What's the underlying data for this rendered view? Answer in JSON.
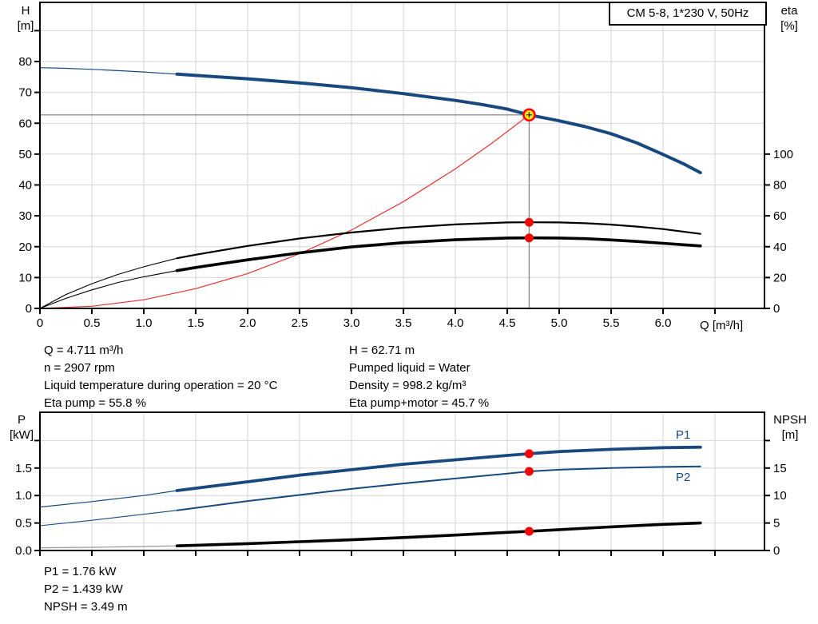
{
  "title_box": "CM 5-8, 1*230 V, 50Hz",
  "colors": {
    "curve_blue": "#17497E",
    "curve_black": "#000000",
    "curve_red": "#E83030",
    "dot_red": "#FF0000",
    "duty_fill": "#FFE40A",
    "grid": "#D6D6D6",
    "crosshair": "#8F8F8F"
  },
  "top_chart": {
    "y_left": {
      "title": "H",
      "unit": "[m]"
    },
    "y_right": {
      "title": "eta",
      "unit": "[%]"
    },
    "x_axis": {
      "label": "Q [m³/h]"
    }
  },
  "bottom_chart": {
    "y_left": {
      "title": "P",
      "unit": "[kW]"
    },
    "y_right": {
      "title": "NPSH",
      "unit": "[m]"
    },
    "p1_label": "P1",
    "p2_label": "P2"
  },
  "annotations": {
    "flow": "Q = 4.711 m³/h",
    "speed": "n = 2907 rpm",
    "liquid_temp": "Liquid temperature during operation = 20 °C",
    "eta_pump": "Eta pump = 55.8 %",
    "head": "H = 62.71 m",
    "pumped_liquid": "Pumped liquid = Water",
    "density": "Density = 998.2 kg/m³",
    "eta_pump_motor": "Eta pump+motor = 45.7 %",
    "p1": "P1 = 1.76 kW",
    "p2": "P2 = 1.439 kW",
    "npsh": "NPSH = 3.49 m"
  },
  "chart_data": [
    {
      "type": "line",
      "title": "CM 5-8, 1*230 V, 50Hz",
      "x": {
        "grid_step": 0.5,
        "grid_max": 6.5,
        "tick_values": [
          0,
          0.5,
          1,
          1.5,
          2,
          2.5,
          3,
          3.5,
          4,
          4.5,
          5,
          5.5,
          6
        ],
        "tick_labels": [
          "0",
          "0.5",
          "1.0",
          "1.5",
          "2.0",
          "2.5",
          "3.0",
          "3.5",
          "4.0",
          "4.5",
          "5.0",
          "5.5",
          "6.0"
        ],
        "extra_ticks": [
          6.5
        ],
        "label": "Q [m³/h]"
      },
      "y_left": {
        "label": "H [m]",
        "tick_step": 10,
        "tick_values": [
          0,
          10,
          20,
          30,
          40,
          50,
          60,
          70,
          80
        ],
        "tick_labels": [
          "0",
          "10",
          "20",
          "30",
          "40",
          "50",
          "60",
          "70",
          "80"
        ],
        "extra_ticks": [
          90
        ]
      },
      "y_right": {
        "label": "eta [%]",
        "tick_step": 20,
        "tick_values": [
          0,
          20,
          40,
          60,
          80,
          100
        ],
        "tick_labels": [
          "0",
          "20",
          "40",
          "60",
          "80",
          "100"
        ],
        "extra_ticks": []
      },
      "duty_point": {
        "q": 4.711,
        "h": 62.71
      },
      "dots": [
        {
          "axis": "right",
          "q": 4.711,
          "v": 55.8
        },
        {
          "axis": "right",
          "q": 4.711,
          "v": 45.7
        }
      ],
      "series": [
        {
          "name": "qh-thin",
          "axis": "left",
          "color": "#17497E",
          "width": 1.2,
          "points": [
            [
              0,
              78
            ],
            [
              0.25,
              77.8
            ],
            [
              0.5,
              77.45
            ],
            [
              0.75,
              77.05
            ],
            [
              1,
              76.6
            ],
            [
              1.32,
              75.9
            ]
          ]
        },
        {
          "name": "qh",
          "axis": "left",
          "color": "#17497E",
          "width": 4,
          "points": [
            [
              1.32,
              75.9
            ],
            [
              1.5,
              75.5
            ],
            [
              2,
              74.4
            ],
            [
              2.5,
              73.1
            ],
            [
              3,
              71.5
            ],
            [
              3.5,
              69.6
            ],
            [
              4,
              67.4
            ],
            [
              4.25,
              66.1
            ],
            [
              4.5,
              64.6
            ],
            [
              4.711,
              62.71
            ],
            [
              5,
              60.8
            ],
            [
              5.25,
              58.9
            ],
            [
              5.5,
              56.6
            ],
            [
              5.75,
              53.6
            ],
            [
              6,
              49.9
            ],
            [
              6.2,
              46.8
            ],
            [
              6.36,
              44
            ]
          ]
        },
        {
          "name": "system-curve",
          "axis": "left",
          "color": "#E83030",
          "width": 1.2,
          "points": [
            [
              0,
              0
            ],
            [
              0.5,
              0.7
            ],
            [
              1,
              2.8
            ],
            [
              1.5,
              6.4
            ],
            [
              2,
              11.3
            ],
            [
              2.5,
              17.7
            ],
            [
              3,
              25.4
            ],
            [
              3.5,
              34.6
            ],
            [
              4,
              45.2
            ],
            [
              4.35,
              53.5
            ],
            [
              4.711,
              62.71
            ]
          ]
        },
        {
          "name": "eta-pump-thin",
          "axis": "right",
          "color": "#000000",
          "width": 1.1,
          "points": [
            [
              0,
              0
            ],
            [
              0.25,
              9
            ],
            [
              0.5,
              16
            ],
            [
              0.75,
              22
            ],
            [
              1,
              27
            ],
            [
              1.32,
              32.5
            ]
          ]
        },
        {
          "name": "eta-pump",
          "axis": "right",
          "color": "#000000",
          "width": 2.2,
          "points": [
            [
              1.32,
              32.5
            ],
            [
              1.5,
              34.8
            ],
            [
              2,
              40.5
            ],
            [
              2.5,
              45.3
            ],
            [
              3,
              49.2
            ],
            [
              3.5,
              52.3
            ],
            [
              4,
              54.4
            ],
            [
              4.5,
              55.7
            ],
            [
              4.711,
              55.8
            ],
            [
              5,
              55.7
            ],
            [
              5.25,
              55.2
            ],
            [
              5.5,
              54.3
            ],
            [
              5.75,
              53
            ],
            [
              6,
              51.4
            ],
            [
              6.36,
              48.3
            ]
          ]
        },
        {
          "name": "eta-pump-motor-thin",
          "axis": "right",
          "color": "#000000",
          "width": 1.1,
          "points": [
            [
              0,
              0
            ],
            [
              0.25,
              6.5
            ],
            [
              0.5,
              12
            ],
            [
              0.75,
              16.8
            ],
            [
              1,
              20.5
            ],
            [
              1.32,
              24.5
            ]
          ]
        },
        {
          "name": "eta-pump-motor",
          "axis": "right",
          "color": "#000000",
          "width": 3.6,
          "points": [
            [
              1.32,
              24.5
            ],
            [
              1.5,
              26.5
            ],
            [
              2,
              31.5
            ],
            [
              2.5,
              36
            ],
            [
              3,
              39.8
            ],
            [
              3.5,
              42.6
            ],
            [
              4,
              44.5
            ],
            [
              4.5,
              45.6
            ],
            [
              4.711,
              45.7
            ],
            [
              5,
              45.6
            ],
            [
              5.25,
              45.2
            ],
            [
              5.5,
              44.4
            ],
            [
              5.75,
              43.4
            ],
            [
              6,
              42.2
            ],
            [
              6.36,
              40.5
            ]
          ]
        }
      ]
    },
    {
      "type": "line",
      "x": {
        "grid_step": 0.5,
        "grid_max": 6.5,
        "tick_values": [],
        "tick_labels": [],
        "extra_ticks": [
          0,
          0.5,
          1,
          1.5,
          2,
          2.5,
          3,
          3.5,
          4,
          4.5,
          5,
          5.5,
          6,
          6.5
        ],
        "label": ""
      },
      "y_left": {
        "label": "P [kW]",
        "tick_step": 0.5,
        "tick_values": [
          0,
          0.5,
          1,
          1.5
        ],
        "tick_labels": [
          "0.0",
          "0.5",
          "1.0",
          "1.5"
        ],
        "extra_ticks": [
          2
        ]
      },
      "y_right": {
        "label": "NPSH [m]",
        "tick_step": 5,
        "tick_values": [
          0,
          5,
          10,
          15
        ],
        "tick_labels": [
          "0",
          "5",
          "10",
          "15"
        ],
        "extra_ticks": [
          20
        ]
      },
      "duty_point": null,
      "dots": [
        {
          "axis": "left",
          "q": 4.711,
          "v": 1.76
        },
        {
          "axis": "left",
          "q": 4.711,
          "v": 1.439
        },
        {
          "axis": "right",
          "q": 4.711,
          "v": 3.49
        }
      ],
      "series": [
        {
          "name": "p1-thin",
          "axis": "left",
          "color": "#17497E",
          "width": 1.2,
          "points": [
            [
              0,
              0.79
            ],
            [
              0.5,
              0.89
            ],
            [
              1,
              1
            ],
            [
              1.32,
              1.09
            ]
          ]
        },
        {
          "name": "p1",
          "axis": "left",
          "color": "#17497E",
          "width": 3.8,
          "points": [
            [
              1.32,
              1.09
            ],
            [
              2,
              1.25
            ],
            [
              2.5,
              1.37
            ],
            [
              3,
              1.47
            ],
            [
              3.5,
              1.57
            ],
            [
              4,
              1.65
            ],
            [
              4.5,
              1.73
            ],
            [
              4.711,
              1.76
            ],
            [
              5,
              1.8
            ],
            [
              5.5,
              1.84
            ],
            [
              6,
              1.87
            ],
            [
              6.36,
              1.88
            ]
          ]
        },
        {
          "name": "p2-thin",
          "axis": "left",
          "color": "#17497E",
          "width": 1.1,
          "points": [
            [
              0,
              0.45
            ],
            [
              0.5,
              0.55
            ],
            [
              1,
              0.66
            ],
            [
              1.32,
              0.73
            ]
          ]
        },
        {
          "name": "p2",
          "axis": "left",
          "color": "#17497E",
          "width": 2,
          "points": [
            [
              1.32,
              0.73
            ],
            [
              2,
              0.9
            ],
            [
              2.5,
              1.01
            ],
            [
              3,
              1.12
            ],
            [
              3.5,
              1.22
            ],
            [
              4,
              1.31
            ],
            [
              4.5,
              1.4
            ],
            [
              4.711,
              1.439
            ],
            [
              5,
              1.47
            ],
            [
              5.5,
              1.5
            ],
            [
              6,
              1.52
            ],
            [
              6.36,
              1.53
            ]
          ]
        },
        {
          "name": "npsh-thin",
          "axis": "right",
          "color": "#999999",
          "width": 1.2,
          "points": [
            [
              0,
              0.5
            ],
            [
              0.5,
              0.58
            ],
            [
              1,
              0.72
            ],
            [
              1.32,
              0.85
            ]
          ]
        },
        {
          "name": "npsh",
          "axis": "right",
          "color": "#000000",
          "width": 3.6,
          "points": [
            [
              1.32,
              0.85
            ],
            [
              2,
              1.25
            ],
            [
              2.5,
              1.6
            ],
            [
              3,
              1.95
            ],
            [
              3.5,
              2.35
            ],
            [
              4,
              2.8
            ],
            [
              4.5,
              3.3
            ],
            [
              4.711,
              3.49
            ],
            [
              5,
              3.8
            ],
            [
              5.5,
              4.3
            ],
            [
              6,
              4.75
            ],
            [
              6.36,
              5
            ]
          ]
        }
      ]
    }
  ]
}
